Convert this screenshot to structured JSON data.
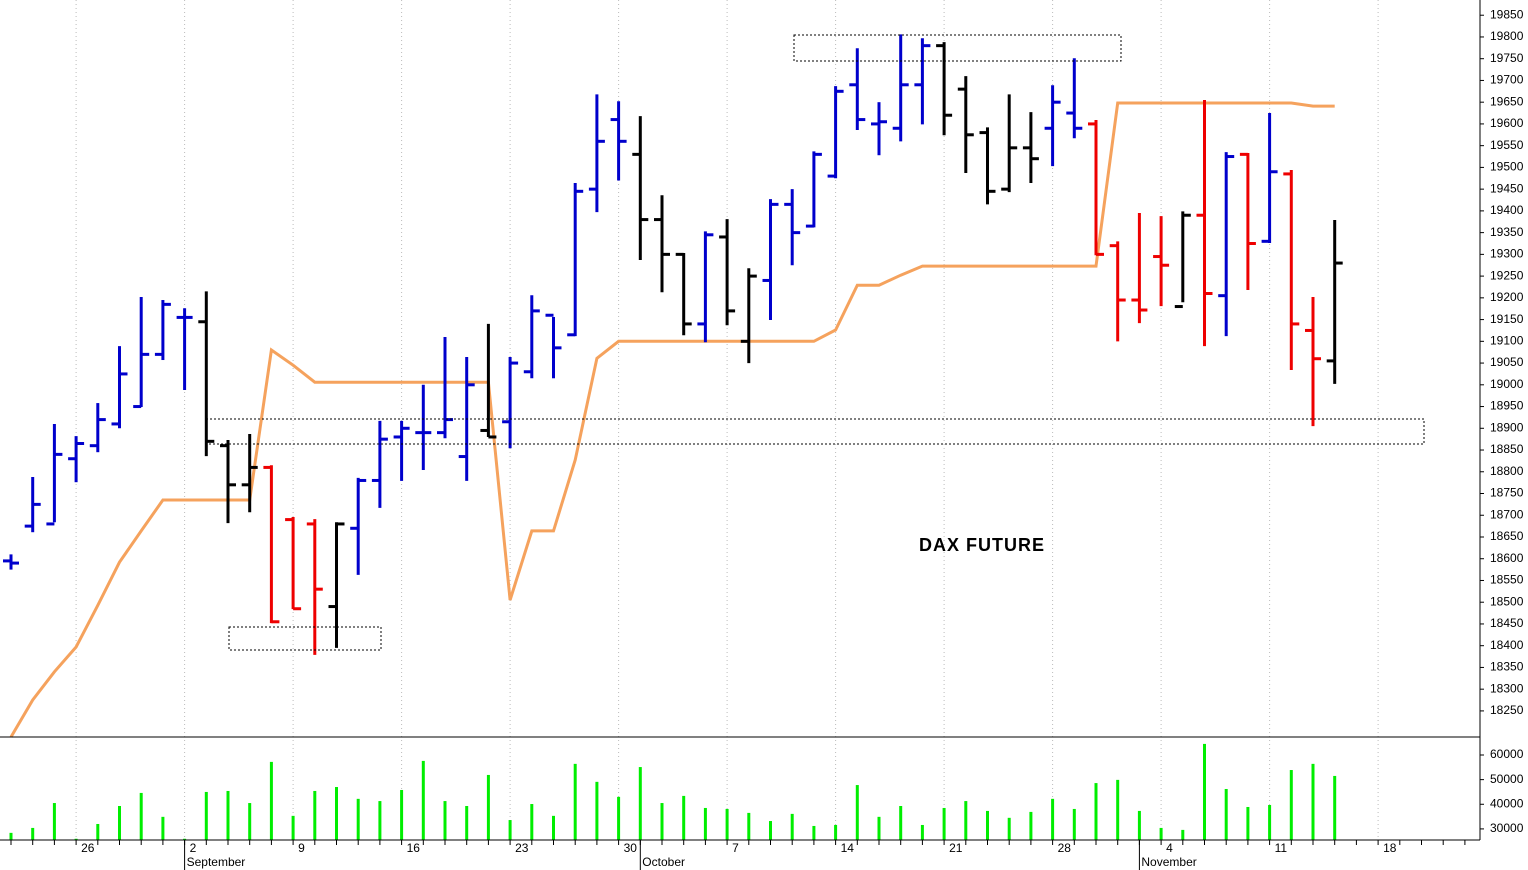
{
  "chart_data": [
    {
      "type": "ohlc",
      "title": "DAX FUTURE",
      "categories": [
        null,
        null,
        null,
        "26",
        null,
        null,
        null,
        null,
        "2",
        null,
        null,
        null,
        null,
        "9",
        null,
        null,
        null,
        null,
        "16",
        null,
        null,
        null,
        null,
        "23",
        null,
        null,
        null,
        null,
        "30",
        null,
        null,
        null,
        null,
        "7",
        null,
        null,
        null,
        null,
        "14",
        null,
        null,
        null,
        null,
        "21",
        null,
        null,
        null,
        null,
        "28",
        null,
        null,
        null,
        null,
        "4",
        null,
        null,
        null,
        null,
        "11",
        null,
        null,
        null,
        null,
        "18",
        null,
        null,
        null,
        null
      ],
      "months": [
        {
          "label": "September",
          "category": 8
        },
        {
          "label": "October",
          "category": 29
        },
        {
          "label": "November",
          "category": 52
        }
      ],
      "open": [
        18595,
        18675,
        18680,
        18830,
        18860,
        18910,
        18950,
        19070,
        19155,
        19145,
        18860,
        18770,
        18810,
        18690,
        18680,
        18490,
        18670,
        18780,
        18880,
        18890,
        18890,
        18835,
        18895,
        18915,
        19030,
        19160,
        19115,
        19450,
        19610,
        19530,
        19380,
        19300,
        19140,
        19340,
        19100,
        19240,
        19415,
        19365,
        19480,
        19690,
        19600,
        19590,
        19690,
        19780,
        19680,
        19580,
        19450,
        19545,
        19590,
        19625,
        19600,
        19320,
        19195,
        19295,
        19180,
        19390,
        19205,
        19530,
        19330,
        19485,
        19125,
        19055,
        null,
        null,
        null,
        null,
        null,
        null
      ],
      "high": [
        18610,
        18788,
        18910,
        18882,
        18958,
        19089,
        19202,
        19195,
        19176,
        19215,
        18873,
        18887,
        18815,
        18696,
        18691,
        18684,
        18786,
        18917,
        18917,
        19000,
        19110,
        19064,
        19140,
        19064,
        19206,
        19156,
        19464,
        19668,
        19652,
        19618,
        19436,
        19303,
        19353,
        19381,
        19268,
        19427,
        19450,
        19537,
        19687,
        19774,
        19650,
        19806,
        19797,
        19788,
        19710,
        19592,
        19668,
        19627,
        19689,
        19751,
        19609,
        19330,
        19395,
        19388,
        19399,
        19655,
        19535,
        19533,
        19625,
        19494,
        19202,
        19379,
        null,
        null,
        null,
        null,
        null,
        null
      ],
      "low": [
        18575,
        18661,
        18684,
        18776,
        18845,
        18900,
        18949,
        19057,
        18988,
        18836,
        18682,
        18707,
        18452,
        18484,
        18379,
        18395,
        18563,
        18717,
        18779,
        18804,
        18877,
        18779,
        18880,
        18854,
        19015,
        19015,
        19112,
        19397,
        19470,
        19287,
        19213,
        19114,
        19098,
        19137,
        19050,
        19149,
        19275,
        19362,
        19475,
        19586,
        19528,
        19560,
        19599,
        19574,
        19487,
        19415,
        19443,
        19464,
        19503,
        19567,
        19298,
        19100,
        19142,
        19181,
        19190,
        19089,
        19112,
        19218,
        19326,
        19034,
        18905,
        19002,
        null,
        null,
        null,
        null,
        null,
        null
      ],
      "close": [
        18590,
        18725,
        18840,
        18865,
        18920,
        19025,
        19070,
        19185,
        19155,
        18870,
        18770,
        18810,
        18455,
        18485,
        18530,
        18680,
        18780,
        18875,
        18900,
        18890,
        18920,
        19000,
        18880,
        19050,
        19170,
        19085,
        19445,
        19560,
        19560,
        19380,
        19300,
        19140,
        19345,
        19170,
        19250,
        19415,
        19350,
        19530,
        19675,
        19610,
        19605,
        19690,
        19780,
        19620,
        19575,
        19445,
        19545,
        19520,
        19650,
        19590,
        19300,
        19195,
        19172,
        19275,
        19390,
        19210,
        19525,
        19325,
        19490,
        19140,
        19060,
        19280,
        null,
        null,
        null,
        null,
        null,
        null
      ],
      "bar_colors": [
        "#0000cc",
        "#0000cc",
        "#0000cc",
        "#0000cc",
        "#0000cc",
        "#0000cc",
        "#0000cc",
        "#0000cc",
        "#0000cc",
        "#000000",
        "#000000",
        "#000000",
        "#ee0000",
        "#ee0000",
        "#ee0000",
        "#000000",
        "#0000cc",
        "#0000cc",
        "#0000cc",
        "#0000cc",
        "#0000cc",
        "#0000cc",
        "#000000",
        "#0000cc",
        "#0000cc",
        "#0000cc",
        "#0000cc",
        "#0000cc",
        "#0000cc",
        "#000000",
        "#000000",
        "#000000",
        "#0000cc",
        "#000000",
        "#000000",
        "#0000cc",
        "#0000cc",
        "#0000cc",
        "#0000cc",
        "#0000cc",
        "#0000cc",
        "#0000cc",
        "#0000cc",
        "#000000",
        "#000000",
        "#000000",
        "#000000",
        "#000000",
        "#0000cc",
        "#0000cc",
        "#ee0000",
        "#ee0000",
        "#ee0000",
        "#ee0000",
        "#000000",
        "#ee0000",
        "#0000cc",
        "#ee0000",
        "#0000cc",
        "#ee0000",
        "#ee0000",
        "#000000",
        null,
        null,
        null,
        null,
        null,
        null
      ],
      "line": {
        "color": "#f5a25d",
        "values": [
          18190,
          18275,
          18340,
          18397,
          18493,
          18592,
          18664,
          18735,
          18735,
          18735,
          18735,
          18735,
          19080,
          19045,
          19006,
          19006,
          19006,
          19006,
          19006,
          19006,
          19006,
          19006,
          19006,
          18505,
          18664,
          18664,
          18827,
          19061,
          19100,
          19100,
          19100,
          19100,
          19100,
          19100,
          19100,
          19100,
          19100,
          19100,
          19126,
          19229,
          19229,
          19252,
          19273,
          19273,
          19273,
          19273,
          19273,
          19273,
          19273,
          19273,
          19273,
          19648,
          19648,
          19648,
          19648,
          19648,
          19648,
          19648,
          19648,
          19648,
          19641,
          19641,
          null,
          null,
          null,
          null,
          null,
          null
        ]
      },
      "ylim": [
        18190,
        19885
      ],
      "yticks": [
        18250,
        18300,
        18350,
        18400,
        18450,
        18500,
        18550,
        18600,
        18650,
        18700,
        18750,
        18800,
        18850,
        18900,
        18950,
        19000,
        19050,
        19100,
        19150,
        19200,
        19250,
        19300,
        19350,
        19400,
        19450,
        19500,
        19550,
        19600,
        19650,
        19700,
        19750,
        19800,
        19850
      ]
    },
    {
      "type": "bar",
      "color": "#00ee00",
      "values": [
        28400,
        30400,
        40500,
        26000,
        32000,
        39300,
        44600,
        34900,
        26000,
        45000,
        45400,
        40500,
        57200,
        35300,
        45400,
        47000,
        42200,
        41300,
        45800,
        57600,
        41300,
        39300,
        51900,
        33600,
        40100,
        35300,
        56400,
        49100,
        43000,
        55100,
        40500,
        43400,
        38500,
        38100,
        36500,
        33200,
        36100,
        31200,
        31600,
        47800,
        34900,
        39300,
        31600,
        38500,
        41300,
        37300,
        34500,
        36900,
        42200,
        38100,
        48600,
        49900,
        37300,
        30400,
        29600,
        64500,
        46200,
        38900,
        39700,
        53900,
        56400,
        51500,
        null,
        null,
        null,
        null,
        null,
        null
      ],
      "ylim": [
        25500,
        67300
      ],
      "yticks": [
        30000,
        40000,
        50000,
        60000
      ]
    }
  ]
}
